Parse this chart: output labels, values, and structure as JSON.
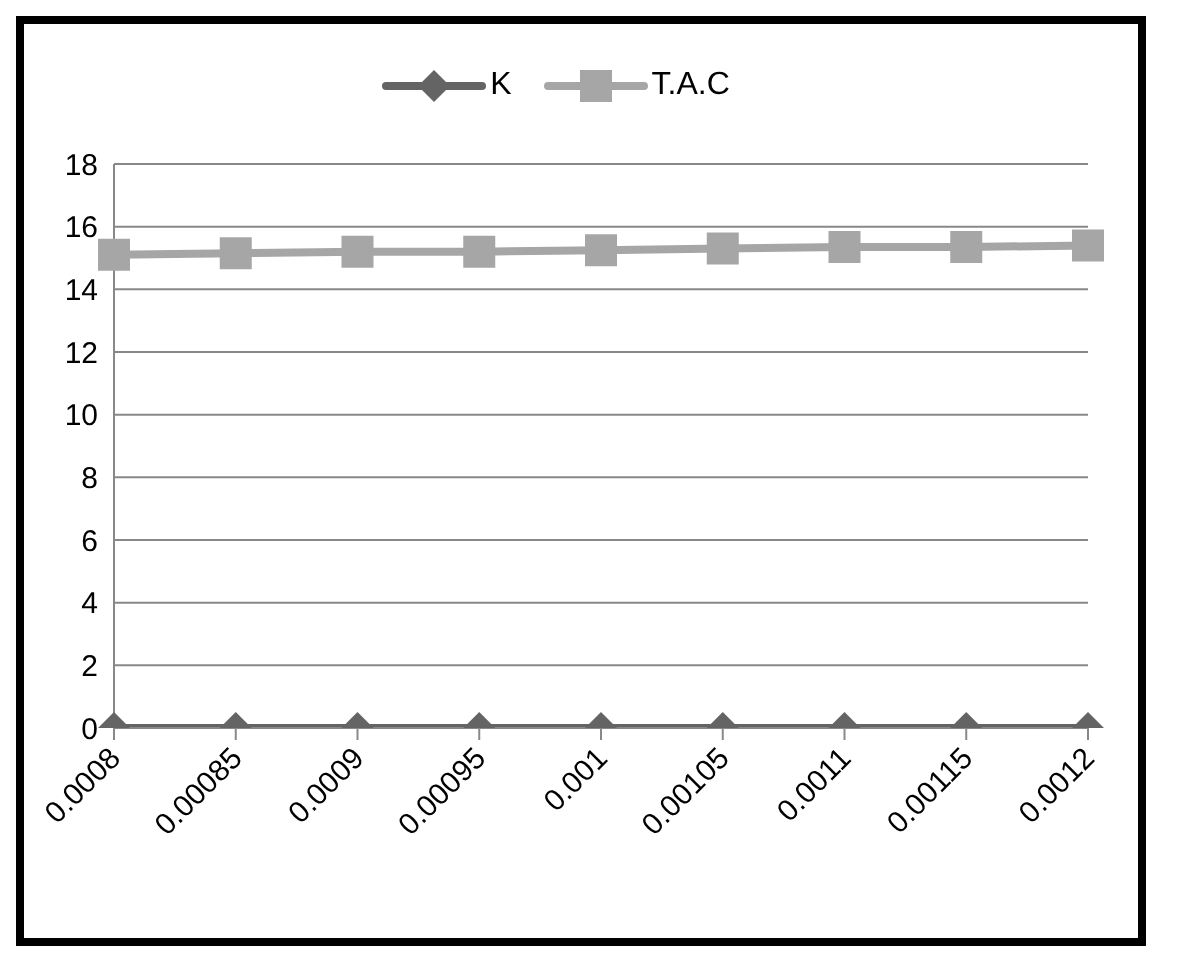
{
  "chart_data": {
    "type": "line",
    "categories": [
      "0.0008",
      "0.00085",
      "0.0009",
      "0.00095",
      "0.001",
      "0.00105",
      "0.0011",
      "0.00115",
      "0.0012"
    ],
    "series": [
      {
        "name": "K",
        "color": "#646464",
        "marker": "diamond",
        "values": [
          0,
          0,
          0,
          0,
          0,
          0,
          0,
          0,
          0
        ]
      },
      {
        "name": "T.A.C",
        "color": "#a6a6a6",
        "marker": "square",
        "values": [
          15.1,
          15.15,
          15.2,
          15.2,
          15.25,
          15.3,
          15.35,
          15.35,
          15.4
        ]
      }
    ],
    "ylim": [
      0,
      18
    ],
    "yticks": [
      0,
      2,
      4,
      6,
      8,
      10,
      12,
      14,
      16,
      18
    ],
    "grid": "y",
    "legend": "top"
  }
}
